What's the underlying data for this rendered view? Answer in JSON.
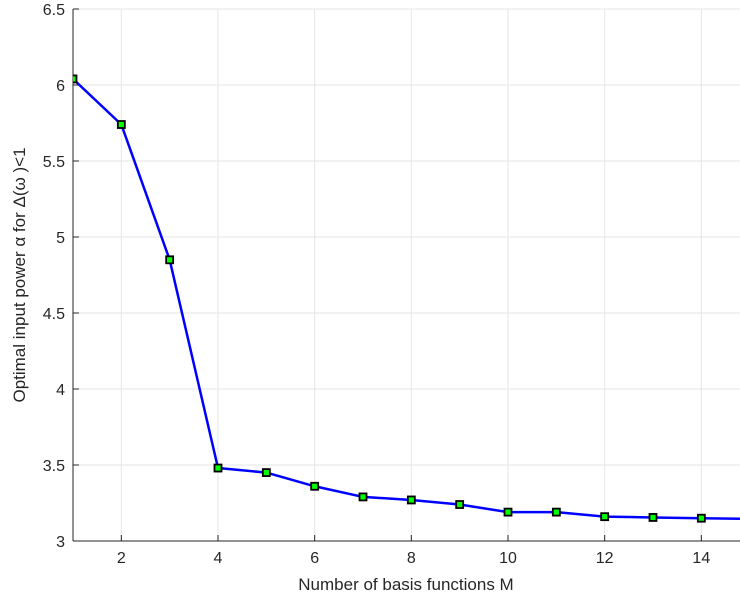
{
  "chart_data": {
    "type": "line",
    "title": "",
    "xlabel": "Number of basis functions M",
    "ylabel": "Optimal input power   α for  Δ(ω )<1",
    "xlim": [
      1,
      14.8
    ],
    "ylim": [
      3,
      6.5
    ],
    "xticks": [
      2,
      4,
      6,
      8,
      10,
      12,
      14
    ],
    "yticks": [
      3,
      3.5,
      4,
      4.5,
      5,
      5.5,
      6,
      6.5
    ],
    "xtick_labels": [
      "2",
      "4",
      "6",
      "8",
      "10",
      "12",
      "14"
    ],
    "ytick_labels": [
      "3",
      "3.5",
      "4",
      "4.5",
      "5",
      "5.5",
      "6",
      "6.5"
    ],
    "grid": true,
    "legend": "none",
    "series": [
      {
        "line_color": "#0000ff",
        "marker": "square",
        "marker_edge_color": "#000000",
        "marker_face_color": "#00ff00",
        "x": [
          1,
          2,
          3,
          4,
          5,
          6,
          7,
          8,
          9,
          10,
          11,
          12,
          13,
          14,
          15
        ],
        "y": [
          6.04,
          5.74,
          4.85,
          3.48,
          3.45,
          3.36,
          3.29,
          3.27,
          3.24,
          3.19,
          3.19,
          3.16,
          3.155,
          3.15,
          3.145
        ]
      }
    ]
  }
}
